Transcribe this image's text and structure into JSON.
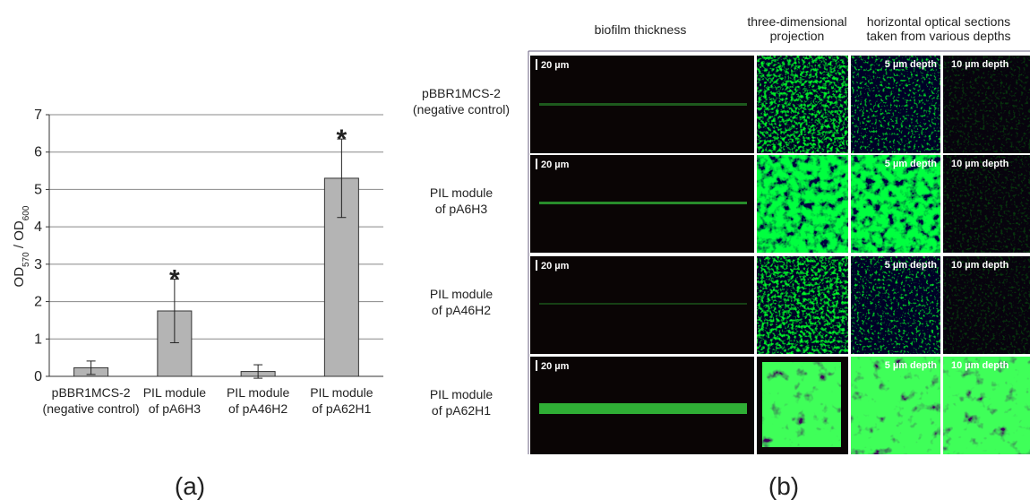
{
  "chart_data": {
    "type": "bar",
    "categories": [
      [
        "pBBR1MCS-2",
        "(negative control)"
      ],
      [
        "PIL module",
        "of pA6H3"
      ],
      [
        "PIL module",
        "of pA46H2"
      ],
      [
        "PIL module",
        "of pA62H1"
      ]
    ],
    "values": [
      0.23,
      1.75,
      0.13,
      5.3
    ],
    "errors": [
      0.18,
      0.85,
      0.18,
      1.05
    ],
    "color": "#b4b4b4",
    "ylim": [
      0,
      7
    ],
    "yticks": [
      0,
      1,
      2,
      3,
      4,
      5,
      6,
      7
    ],
    "grid": true,
    "ylabel": {
      "od1": "OD",
      "sub1": "570",
      "sep": " / OD",
      "sub2": "600"
    },
    "annotations": [
      {
        "text": "*",
        "category": 1
      },
      {
        "text": "*",
        "category": 3
      }
    ],
    "panel_label": "(a)"
  },
  "panel_b": {
    "panel_label": "(b)",
    "columns": [
      [
        "biofilm thickness"
      ],
      [
        "three-dimensional",
        "projection"
      ],
      [
        "horizontal optical sections",
        "taken from various depths"
      ]
    ],
    "rows": [
      [
        "pBBR1MCS-2",
        "(negative control)"
      ],
      [
        "PIL module",
        "of pA6H3"
      ],
      [
        "PIL module",
        "of pA46H2"
      ],
      [
        "PIL module",
        "of pA62H1"
      ]
    ],
    "scale_label": "20 µm",
    "depth_labels": [
      "5 µm depth",
      "10 µm depth"
    ]
  }
}
